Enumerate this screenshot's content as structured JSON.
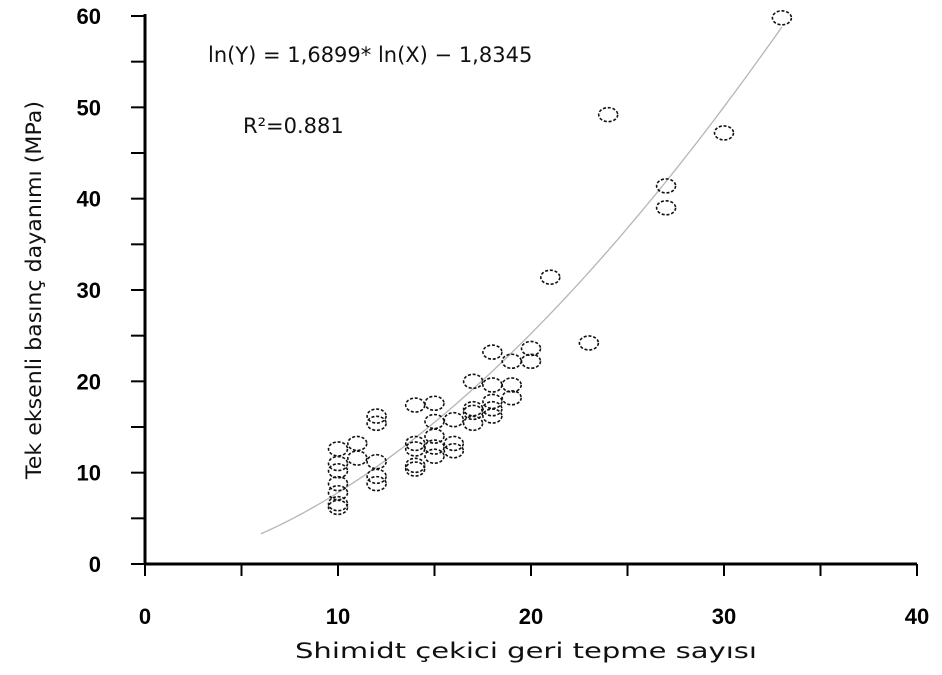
{
  "chart_data": {
    "type": "scatter",
    "xlabel": "Shimidt çekici geri tepme sayısı",
    "ylabel": "Tek eksenli basınç dayanımı (MPa)",
    "xlim": [
      0,
      40
    ],
    "ylim": [
      0,
      60
    ],
    "xticks": [
      0,
      10,
      20,
      30,
      40
    ],
    "yticks": [
      0,
      10,
      20,
      30,
      40,
      50,
      60
    ],
    "x_tick_labels": [
      "0",
      "10",
      "20",
      "30",
      "40"
    ],
    "y_tick_labels": [
      "0",
      "10",
      "20",
      "30",
      "40",
      "50",
      "60"
    ],
    "grid": false,
    "legend": "none",
    "marker": "open-circle-dashed",
    "annotations": {
      "equation": "ln(Y) = 1,6899* ln(X) − 1,8345",
      "r_squared": "R²=0.881"
    },
    "fit": {
      "form": "power",
      "a": 1.6899,
      "b": -1.8345,
      "x_range": [
        6,
        33
      ],
      "color": "#b5b5b5"
    },
    "series": [
      {
        "x": [
          10,
          10,
          10,
          10,
          10,
          10,
          10,
          11,
          11,
          12,
          12,
          12,
          12,
          12,
          14,
          14,
          14,
          14,
          14,
          15,
          15,
          15,
          15,
          15,
          16,
          16,
          16,
          17,
          17,
          17,
          17,
          18,
          18,
          18,
          18,
          18,
          19,
          19,
          19,
          20,
          20,
          21,
          23,
          24,
          27,
          27,
          30,
          33
        ],
        "y": [
          12.6,
          11.0,
          10.2,
          8.8,
          7.8,
          6.6,
          6.2,
          13.2,
          11.6,
          16.2,
          15.4,
          11.2,
          9.6,
          8.8,
          17.4,
          13.2,
          12.6,
          10.8,
          10.4,
          17.6,
          15.6,
          14.0,
          12.8,
          11.8,
          15.8,
          13.2,
          12.4,
          20.0,
          17.0,
          16.6,
          15.4,
          23.2,
          19.6,
          17.8,
          17.0,
          16.2,
          22.2,
          19.6,
          18.2,
          23.6,
          22.2,
          31.4,
          24.2,
          49.2,
          41.4,
          39.0,
          47.2,
          59.8
        ]
      }
    ]
  }
}
